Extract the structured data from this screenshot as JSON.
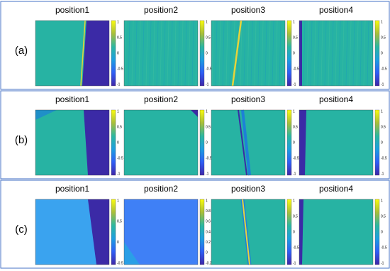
{
  "rows": [
    {
      "label": "(a)",
      "panels": [
        {
          "title": "position1",
          "colorbar_ticks": [
            "1",
            "0.5",
            "0",
            "-0.5",
            "-1"
          ]
        },
        {
          "title": "position2",
          "colorbar_ticks": [
            "1",
            "0.5",
            "0",
            "-0.5",
            "-1"
          ]
        },
        {
          "title": "position3",
          "colorbar_ticks": [
            "1",
            "0.5",
            "0",
            "-0.5",
            "-1"
          ]
        },
        {
          "title": "position4",
          "colorbar_ticks": [
            "1",
            "0.5",
            "0",
            "-0.5",
            "-1"
          ]
        }
      ]
    },
    {
      "label": "(b)",
      "panels": [
        {
          "title": "position1",
          "colorbar_ticks": [
            "1",
            "0.5",
            "0",
            "-0.5",
            "-1"
          ]
        },
        {
          "title": "position2",
          "colorbar_ticks": [
            "1",
            "0.5",
            "0",
            "-0.5",
            "-1"
          ]
        },
        {
          "title": "position3",
          "colorbar_ticks": [
            "1",
            "0.5",
            "0",
            "-0.5",
            "-1"
          ]
        },
        {
          "title": "position4",
          "colorbar_ticks": [
            "1",
            "0.5",
            "0",
            "-0.5",
            "-1"
          ]
        }
      ]
    },
    {
      "label": "(c)",
      "panels": [
        {
          "title": "position1",
          "colorbar_ticks": [
            "1",
            "0.5",
            "0",
            "-0.5"
          ]
        },
        {
          "title": "position2",
          "colorbar_ticks": [
            "1",
            "0.8",
            "0.6",
            "0.4",
            "0.2",
            "0",
            "-0.2"
          ]
        },
        {
          "title": "position3",
          "colorbar_ticks": [
            "1",
            "0.5",
            "0",
            "-0.5",
            "-1"
          ]
        },
        {
          "title": "position4",
          "colorbar_ticks": [
            "1",
            "0.5",
            "0",
            "-0.5",
            "-1"
          ]
        }
      ]
    }
  ]
}
